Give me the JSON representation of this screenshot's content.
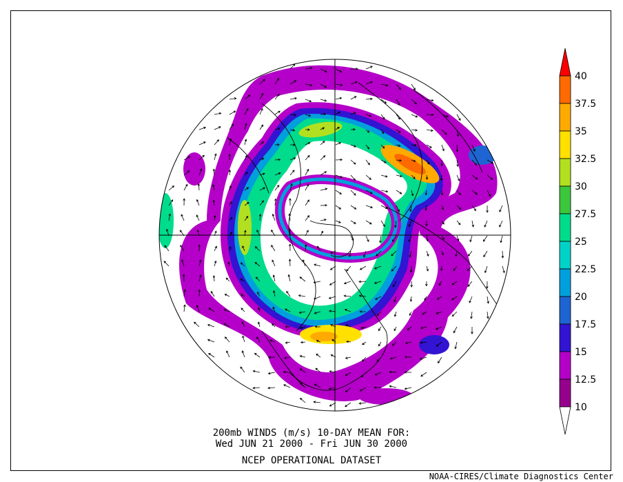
{
  "caption": {
    "line1": "200mb WINDS (m/s)   10-DAY MEAN FOR:",
    "line2": "Wed JUN 21 2000 - Fri JUN 30 2000",
    "line3": "NCEP OPERATIONAL DATASET"
  },
  "credit": "NOAA-CIRES/Climate Diagnostics Center",
  "colorbar": {
    "levels": [
      {
        "label": "40",
        "color": "#ff0000"
      },
      {
        "label": "37.5",
        "color": "#ff6a00"
      },
      {
        "label": "35",
        "color": "#ffaa00"
      },
      {
        "label": "32.5",
        "color": "#ffe000"
      },
      {
        "label": "30",
        "color": "#b2e020"
      },
      {
        "label": "27.5",
        "color": "#3cc63c"
      },
      {
        "label": "25",
        "color": "#00dc8c"
      },
      {
        "label": "22.5",
        "color": "#00d2c8"
      },
      {
        "label": "20",
        "color": "#00a0dc"
      },
      {
        "label": "17.5",
        "color": "#1e64d2"
      },
      {
        "label": "15",
        "color": "#3214d2"
      },
      {
        "label": "12.5",
        "color": "#b400c8"
      },
      {
        "label": "10",
        "color": "#96008c"
      }
    ],
    "below_color": "#ffffff"
  }
}
